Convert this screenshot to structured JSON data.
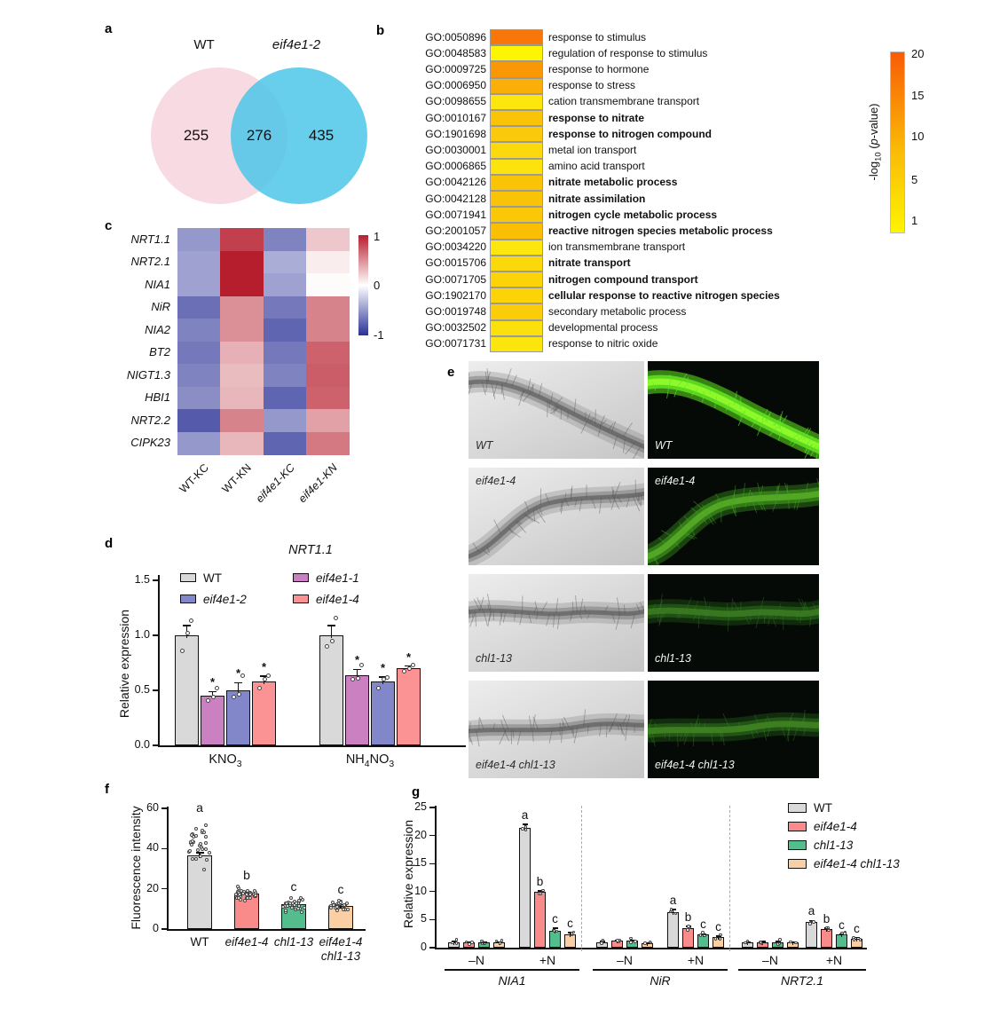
{
  "panel_a": {
    "label": "a",
    "left_name": "WT",
    "right_name": "eif4e1-2",
    "left_count": "255",
    "overlap_count": "276",
    "right_count": "435",
    "left_color": "#f8dbe2",
    "right_color": "rgba(70,197,232,0.82)"
  },
  "panel_b": {
    "label": "b",
    "rows": [
      {
        "id": "GO:0050896",
        "term": "response to stimulus",
        "color": "#f8770b",
        "bold": false
      },
      {
        "id": "GO:0048583",
        "term": "regulation of response to stimulus",
        "color": "#fdf501",
        "bold": false
      },
      {
        "id": "GO:0009725",
        "term": "response to hormone",
        "color": "#fa9704",
        "bold": false
      },
      {
        "id": "GO:0006950",
        "term": "response to stress",
        "color": "#f9ae08",
        "bold": false
      },
      {
        "id": "GO:0098655",
        "term": "cation transmembrane transport",
        "color": "#fce60d",
        "bold": false
      },
      {
        "id": "GO:0010167",
        "term": "response to nitrate",
        "color": "#fac308",
        "bold": true
      },
      {
        "id": "GO:1901698",
        "term": "response to nitrogen compound",
        "color": "#fbc90b",
        "bold": true
      },
      {
        "id": "GO:0030001",
        "term": "metal ion transport",
        "color": "#fcd90c",
        "bold": false
      },
      {
        "id": "GO:0006865",
        "term": "amino acid transport",
        "color": "#fce30d",
        "bold": false
      },
      {
        "id": "GO:0042126",
        "term": "nitrate metabolic process",
        "color": "#fac306",
        "bold": true
      },
      {
        "id": "GO:0042128",
        "term": "nitrate assimilation",
        "color": "#fac306",
        "bold": true
      },
      {
        "id": "GO:0071941",
        "term": "nitrogen cycle metabolic process",
        "color": "#fbc808",
        "bold": true
      },
      {
        "id": "GO:2001057",
        "term": "reactive nitrogen species metabolic process",
        "color": "#fabf04",
        "bold": true
      },
      {
        "id": "GO:0034220",
        "term": "ion transmembrane transport",
        "color": "#fce60d",
        "bold": false
      },
      {
        "id": "GO:0015706",
        "term": "nitrate transport",
        "color": "#fbd80a",
        "bold": true
      },
      {
        "id": "GO:0071705",
        "term": "nitrogen compound transport",
        "color": "#fbd306",
        "bold": true
      },
      {
        "id": "GO:1902170",
        "term": "cellular response to reactive nitrogen species",
        "color": "#fbd306",
        "bold": true
      },
      {
        "id": "GO:0019748",
        "term": "secondary metabolic process",
        "color": "#fbcd08",
        "bold": false
      },
      {
        "id": "GO:0032502",
        "term": "developmental process",
        "color": "#fce00b",
        "bold": false
      },
      {
        "id": "GO:0071731",
        "term": "response to nitric oxide",
        "color": "#fce50c",
        "bold": false
      }
    ],
    "colorbar": {
      "ticks": [
        "20",
        "15",
        "10",
        "5",
        "1"
      ],
      "label_pre": "-log",
      "label_sub": "10",
      "label_open": " (",
      "label_p": "p",
      "label_close": "-value)",
      "gradient_top": "#f85c07",
      "gradient_mid": "#fabb07",
      "gradient_bottom": "#fdf403"
    }
  },
  "panel_c": {
    "label": "c",
    "genes": [
      "NRT1.1",
      "NRT2.1",
      "NIA1",
      "NiR",
      "NIA2",
      "BT2",
      "NIGT1.3",
      "HBI1",
      "NRT2.2",
      "CIPK23"
    ],
    "conditions": [
      {
        "name": "WT-KC",
        "italic": false
      },
      {
        "name": "WT-KN",
        "italic": false
      },
      {
        "name": "eif4e1-KC",
        "italic": true
      },
      {
        "name": "eif4e1-KN",
        "italic": true
      }
    ],
    "values": [
      [
        -0.5,
        0.85,
        -0.6,
        0.25
      ],
      [
        -0.45,
        1.0,
        -0.4,
        0.08
      ],
      [
        -0.45,
        1.0,
        -0.45,
        0.02
      ],
      [
        -0.7,
        0.5,
        -0.65,
        0.55
      ],
      [
        -0.6,
        0.5,
        -0.75,
        0.55
      ],
      [
        -0.65,
        0.35,
        -0.65,
        0.7
      ],
      [
        -0.6,
        0.3,
        -0.6,
        0.72
      ],
      [
        -0.55,
        0.32,
        -0.75,
        0.7
      ],
      [
        -0.8,
        0.55,
        -0.5,
        0.42
      ],
      [
        -0.5,
        0.32,
        -0.75,
        0.6
      ]
    ],
    "colorbar_ticks": [
      "1",
      "0",
      "-1"
    ],
    "color_max": "#b71e2d",
    "color_min": "#2a3196"
  },
  "panel_d": {
    "label": "d",
    "title": "NRT1.1",
    "ylabel": "Relative expression",
    "yticks": [
      {
        "v": 1.5,
        "t": "1.5"
      },
      {
        "v": 1.0,
        "t": "1.0"
      },
      {
        "v": 0.5,
        "t": "0.5"
      },
      {
        "v": 0.0,
        "t": "0.0"
      }
    ],
    "series": [
      {
        "name": "WT",
        "color": "#d9d9d9",
        "italic": false
      },
      {
        "name": "eif4e1-1",
        "color": "#cb80c1",
        "italic": true
      },
      {
        "name": "eif4e1-2",
        "color": "#8187c8",
        "italic": true
      },
      {
        "name": "eif4e1-4",
        "color": "#fb9294",
        "italic": true
      }
    ],
    "legend_order": [
      0,
      2,
      1,
      3
    ],
    "groups": [
      {
        "segs": [
          {
            "t": "KNO"
          },
          {
            "t": "3",
            "sub": true
          }
        ],
        "bars": [
          {
            "value": 1.0,
            "err": 0.09,
            "sig": "",
            "points": [
              0.86,
              1.02,
              1.13
            ]
          },
          {
            "value": 0.45,
            "err": 0.04,
            "sig": "*",
            "points": [
              0.41,
              0.44,
              0.52
            ]
          },
          {
            "value": 0.5,
            "err": 0.07,
            "sig": "*",
            "points": [
              0.44,
              0.46,
              0.63
            ]
          },
          {
            "value": 0.58,
            "err": 0.05,
            "sig": "*",
            "points": [
              0.52,
              0.6,
              0.63
            ]
          }
        ]
      },
      {
        "segs": [
          {
            "t": "NH"
          },
          {
            "t": "4",
            "sub": true
          },
          {
            "t": "NO"
          },
          {
            "t": "3",
            "sub": true
          }
        ],
        "bars": [
          {
            "value": 1.0,
            "err": 0.09,
            "sig": "",
            "points": [
              0.9,
              0.95,
              1.16
            ]
          },
          {
            "value": 0.64,
            "err": 0.05,
            "sig": "*",
            "points": [
              0.6,
              0.61,
              0.73
            ]
          },
          {
            "value": 0.58,
            "err": 0.04,
            "sig": "*",
            "points": [
              0.52,
              0.6,
              0.62
            ]
          },
          {
            "value": 0.7,
            "err": 0.02,
            "sig": "*",
            "points": [
              0.67,
              0.7,
              0.73
            ]
          }
        ]
      }
    ]
  },
  "panel_e": {
    "label": "e",
    "rows": [
      {
        "name": "WT",
        "italic": false,
        "glow": 1.0,
        "label_pos": "bottom"
      },
      {
        "name": "eif4e1-4",
        "italic": true,
        "glow": 0.52,
        "label_pos": "top"
      },
      {
        "name": "chl1-13",
        "italic": true,
        "glow": 0.26,
        "label_pos": "bottom"
      },
      {
        "name": "eif4e1-4 chl1-13",
        "italic": true,
        "glow": 0.3,
        "label_pos": "bottom"
      }
    ]
  },
  "panel_f": {
    "label": "f",
    "ylabel": "Fluorescence intensity",
    "yticks": [
      {
        "v": 60,
        "t": "60"
      },
      {
        "v": 40,
        "t": "40"
      },
      {
        "v": 20,
        "t": "20"
      },
      {
        "v": 0,
        "t": "0"
      }
    ],
    "bars": [
      {
        "label_lines": [
          "WT"
        ],
        "italic": false,
        "value": 36.5,
        "err": 1.5,
        "letter": "a",
        "color": "#d9d9d9",
        "n": 30,
        "lo": 27,
        "hi": 55
      },
      {
        "label_lines": [
          "eif4e1-4"
        ],
        "italic": true,
        "value": 17.5,
        "err": 0.6,
        "letter": "b",
        "color": "#f98b8b",
        "n": 34,
        "lo": 13.5,
        "hi": 21.5
      },
      {
        "label_lines": [
          "chl1-13"
        ],
        "italic": true,
        "value": 12.5,
        "err": 0.5,
        "letter": "c",
        "color": "#54bd8d",
        "n": 30,
        "lo": 5.5,
        "hi": 16
      },
      {
        "label_lines": [
          "eif4e1-4",
          "chl1-13"
        ],
        "italic": true,
        "value": 11.5,
        "err": 0.5,
        "letter": "c",
        "color": "#fbcfa4",
        "n": 30,
        "lo": 8.5,
        "hi": 14.5
      }
    ]
  },
  "panel_g": {
    "label": "g",
    "ylabel": "Relative expression",
    "yticks": [
      {
        "v": 25,
        "t": "25"
      },
      {
        "v": 20,
        "t": "20"
      },
      {
        "v": 15,
        "t": "15"
      },
      {
        "v": 10,
        "t": "10"
      },
      {
        "v": 5,
        "t": "5"
      },
      {
        "v": 0,
        "t": "0"
      }
    ],
    "series": [
      {
        "name": "WT",
        "color": "#d9d9d9",
        "italic": false
      },
      {
        "name": "eif4e1-4",
        "color": "#f98b8b",
        "italic": true
      },
      {
        "name": "chl1-13",
        "color": "#54bd8d",
        "italic": true
      },
      {
        "name": "eif4e1-4 chl1-13",
        "color": "#fbcfa4",
        "italic": true
      }
    ],
    "cond_minus": "–N",
    "cond_plus": "+N",
    "genes": [
      {
        "name": "NIA1",
        "minus": {
          "values": [
            1.0,
            0.9,
            0.9,
            0.9
          ],
          "errs": [
            0.1,
            0.08,
            0.08,
            0.08
          ]
        },
        "plus": {
          "values": [
            21.3,
            9.9,
            3.0,
            2.4
          ],
          "errs": [
            0.7,
            0.25,
            0.5,
            0.3
          ],
          "letters": [
            "a",
            "b",
            "c",
            "c"
          ]
        }
      },
      {
        "name": "NiR",
        "minus": {
          "values": [
            1.0,
            1.2,
            1.2,
            0.8
          ],
          "errs": [
            0.1,
            0.1,
            0.1,
            0.08
          ]
        },
        "plus": {
          "values": [
            6.4,
            3.5,
            2.3,
            1.9
          ],
          "errs": [
            0.4,
            0.3,
            0.2,
            0.15
          ],
          "letters": [
            "a",
            "b",
            "c",
            "c"
          ]
        }
      },
      {
        "name": "NRT2.1",
        "minus": {
          "values": [
            0.9,
            1.0,
            1.0,
            0.9
          ],
          "errs": [
            0.08,
            0.1,
            0.1,
            0.08
          ]
        },
        "plus": {
          "values": [
            4.6,
            3.3,
            2.3,
            1.6
          ],
          "errs": [
            0.25,
            0.2,
            0.15,
            0.2
          ],
          "letters": [
            "a",
            "b",
            "c",
            "c"
          ]
        }
      }
    ]
  }
}
